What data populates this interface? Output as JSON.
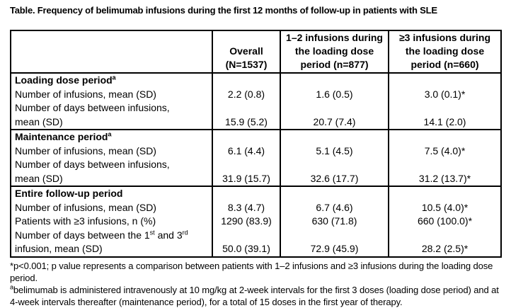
{
  "title": "Table. Frequency of belimumab infusions during the first 12 months of follow-up in patients with SLE",
  "colors": {
    "text": "#000000",
    "border": "#000000",
    "background": "#ffffff"
  },
  "table": {
    "headers": [
      "",
      "Overall\n(N=1537)",
      "1–2 infusions during\nthe loading dose\nperiod (n=877)",
      "≥3 infusions during\nthe loading dose\nperiod (n=660)"
    ],
    "sections": [
      {
        "rows": [
          {
            "label": [
              "Loading dose period",
              {
                "sup": "a"
              }
            ],
            "bold": true,
            "values": [
              "",
              "",
              ""
            ]
          },
          {
            "label": "Number of infusions, mean (SD)",
            "values": [
              "2.2 (0.8)",
              "1.6 (0.5)",
              "3.0 (0.1)*"
            ]
          },
          {
            "label": "Number of days between infusions,",
            "values": [
              "",
              "",
              ""
            ]
          },
          {
            "label": "mean (SD)",
            "values": [
              "15.9 (5.2)",
              "20.7 (7.4)",
              "14.1 (2.0)"
            ]
          }
        ]
      },
      {
        "rows": [
          {
            "label": [
              "Maintenance period",
              {
                "sup": "a"
              }
            ],
            "bold": true,
            "values": [
              "",
              "",
              ""
            ]
          },
          {
            "label": "Number of infusions, mean (SD)",
            "values": [
              "6.1 (4.4)",
              "5.1 (4.5)",
              "7.5 (4.0)*"
            ]
          },
          {
            "label": "Number of days between infusions,",
            "values": [
              "",
              "",
              ""
            ]
          },
          {
            "label": "mean (SD)",
            "values": [
              "31.9 (15.7)",
              "32.6 (17.7)",
              "31.2 (13.7)*"
            ]
          }
        ]
      },
      {
        "rows": [
          {
            "label": "Entire follow-up period",
            "bold": true,
            "values": [
              "",
              "",
              ""
            ]
          },
          {
            "label": "Number of infusions, mean (SD)",
            "values": [
              "8.3 (4.7)",
              "6.7 (4.6)",
              "10.5 (4.0)*"
            ]
          },
          {
            "label": "Patients with ≥3 infusions, n (%)",
            "values": [
              "1290 (83.9)",
              "630 (71.8)",
              "660 (100.0)*"
            ]
          },
          {
            "label": [
              "Number of days between the 1",
              {
                "sup": "st"
              },
              " and 3",
              {
                "sup": "rd"
              }
            ],
            "values": [
              "",
              "",
              ""
            ]
          },
          {
            "label": "infusion, mean (SD)",
            "values": [
              "50.0 (39.1)",
              "72.9 (45.9)",
              "28.2 (2.5)*"
            ]
          }
        ]
      }
    ]
  },
  "footnotes": [
    {
      "parts": [
        "*p<0.001; p value represents a comparison between patients with 1–2 infusions and ≥3 infusions during the loading dose period."
      ]
    },
    {
      "parts": [
        {
          "sup": "a"
        },
        "belimumab is administered intravenously at 10 mg/kg at 2-week intervals for the first 3 doses (loading dose period) and at 4-week intervals thereafter (maintenance period), for a total of 15 doses in the first year of therapy."
      ]
    }
  ]
}
